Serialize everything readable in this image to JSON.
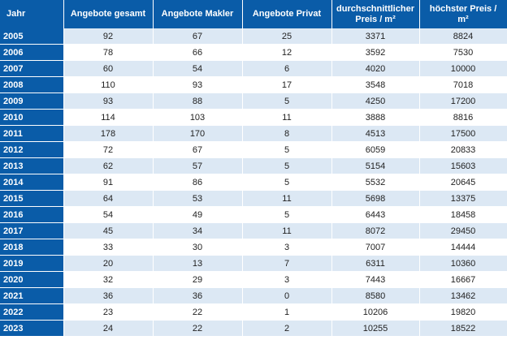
{
  "table": {
    "headers": {
      "jahr": "Jahr",
      "gesamt": "Angebote gesamt",
      "makler": "Angebote Makler",
      "privat": "Angebote Privat",
      "preis_line1": "durchschnittlicher",
      "preis_line2": "Preis / m²",
      "hoechst": "höchster Preis / m²"
    },
    "rows": [
      [
        "2005",
        "92",
        "67",
        "25",
        "3371",
        "8824"
      ],
      [
        "2006",
        "78",
        "66",
        "12",
        "3592",
        "7530"
      ],
      [
        "2007",
        "60",
        "54",
        "6",
        "4020",
        "10000"
      ],
      [
        "2008",
        "110",
        "93",
        "17",
        "3548",
        "7018"
      ],
      [
        "2009",
        "93",
        "88",
        "5",
        "4250",
        "17200"
      ],
      [
        "2010",
        "114",
        "103",
        "11",
        "3888",
        "8816"
      ],
      [
        "2011",
        "178",
        "170",
        "8",
        "4513",
        "17500"
      ],
      [
        "2012",
        "72",
        "67",
        "5",
        "6059",
        "20833"
      ],
      [
        "2013",
        "62",
        "57",
        "5",
        "5154",
        "15603"
      ],
      [
        "2014",
        "91",
        "86",
        "5",
        "5532",
        "20645"
      ],
      [
        "2015",
        "64",
        "53",
        "11",
        "5698",
        "13375"
      ],
      [
        "2016",
        "54",
        "49",
        "5",
        "6443",
        "18458"
      ],
      [
        "2017",
        "45",
        "34",
        "11",
        "8072",
        "29450"
      ],
      [
        "2018",
        "33",
        "30",
        "3",
        "7007",
        "14444"
      ],
      [
        "2019",
        "20",
        "13",
        "7",
        "6311",
        "10360"
      ],
      [
        "2020",
        "32",
        "29",
        "3",
        "7443",
        "16667"
      ],
      [
        "2021",
        "36",
        "36",
        "0",
        "8580",
        "13462"
      ],
      [
        "2022",
        "23",
        "22",
        "1",
        "10206",
        "19820"
      ],
      [
        "2023",
        "24",
        "22",
        "2",
        "10255",
        "18522"
      ]
    ]
  },
  "colors": {
    "header_bg": "#0a5ca8",
    "band_light": "#dce8f4",
    "band_white": "#ffffff"
  }
}
